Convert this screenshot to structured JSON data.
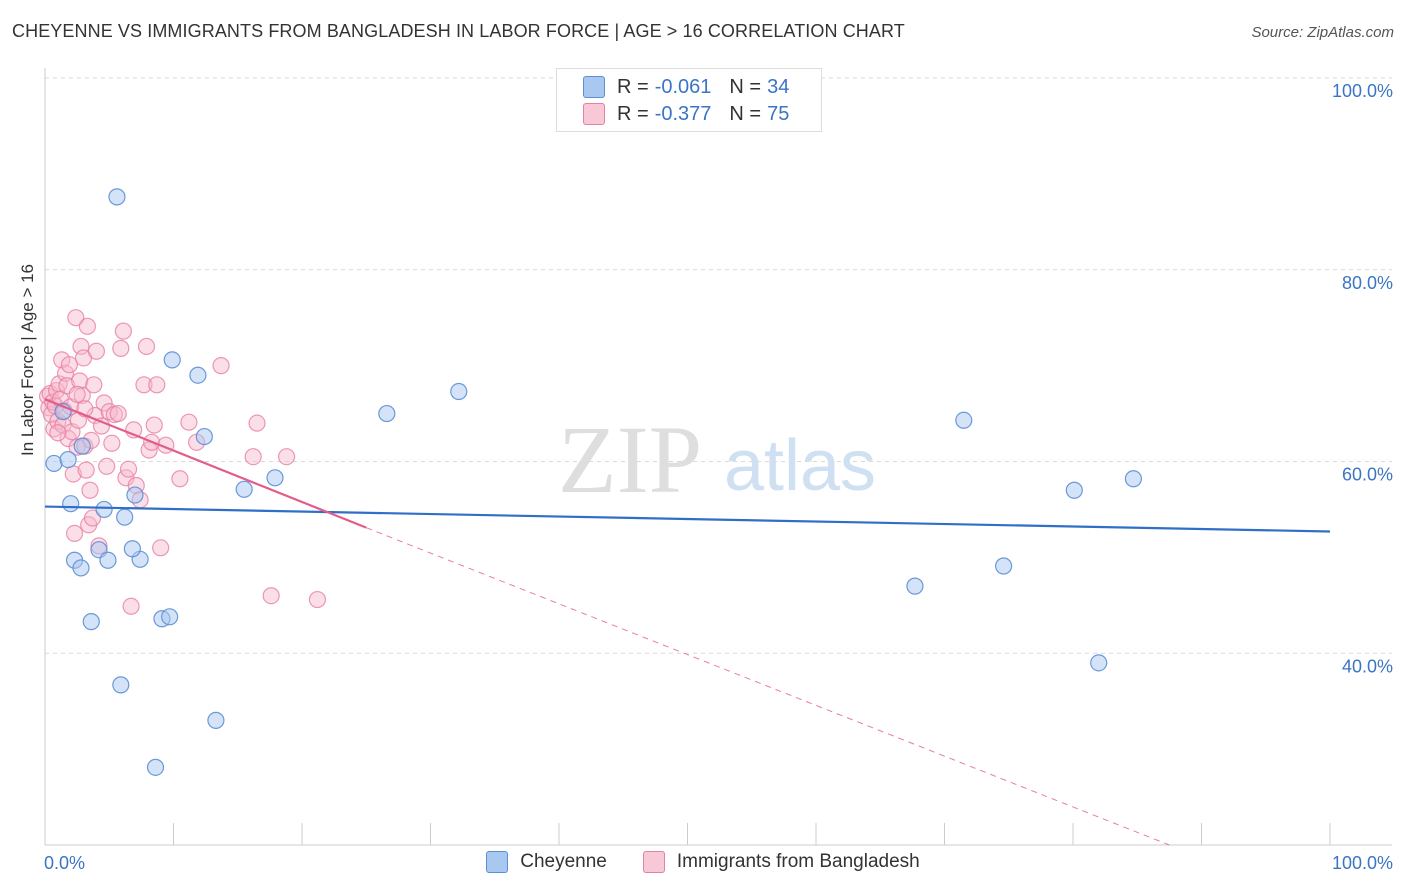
{
  "header": {
    "title": "CHEYENNE VS IMMIGRANTS FROM BANGLADESH IN LABOR FORCE | AGE > 16 CORRELATION CHART",
    "source": "Source: ZipAtlas.com"
  },
  "legend": {
    "series1": {
      "r_label": "R =",
      "r_value": "-0.061",
      "n_label": "N =",
      "n_value": "34"
    },
    "series2": {
      "r_label": "R =",
      "r_value": "-0.377",
      "n_label": "N =",
      "n_value": "75"
    }
  },
  "bottom_legend": {
    "series1": "Cheyenne",
    "series2": "Immigrants from Bangladesh"
  },
  "watermark": {
    "zip": "ZIP",
    "atlas": "atlas"
  },
  "colors": {
    "blue_fill": "#a9c8f0",
    "blue_stroke": "#5b8fd6",
    "blue_line": "#2f6fc8",
    "pink_fill": "#f7b8cb",
    "pink_stroke": "#e87fa0",
    "pink_line": "#e35d8a",
    "axis_text": "#3a75c4",
    "grid": "#d9d9d9"
  },
  "chart_data": {
    "type": "scatter",
    "title": "CHEYENNE VS IMMIGRANTS FROM BANGLADESH IN LABOR FORCE | AGE > 16 CORRELATION CHART",
    "xlabel": "",
    "ylabel": "In Labor Force | Age > 16",
    "xlim": [
      0,
      100
    ],
    "ylim": [
      20,
      100
    ],
    "x_tick_labels": [
      "0.0%",
      "100.0%"
    ],
    "y_ticks": [
      40,
      60,
      80,
      100
    ],
    "y_tick_labels": [
      "40.0%",
      "60.0%",
      "80.0%",
      "100.0%"
    ],
    "grid": true,
    "series": [
      {
        "name": "Cheyenne",
        "color": "blue",
        "points": [
          [
            5.6,
            87.6
          ],
          [
            0.7,
            59.8
          ],
          [
            1.8,
            60.2
          ],
          [
            2.0,
            55.6
          ],
          [
            2.3,
            49.7
          ],
          [
            2.8,
            48.9
          ],
          [
            3.6,
            43.3
          ],
          [
            4.2,
            50.8
          ],
          [
            4.6,
            55.0
          ],
          [
            4.9,
            49.7
          ],
          [
            5.9,
            36.7
          ],
          [
            6.2,
            54.2
          ],
          [
            7.0,
            56.5
          ],
          [
            7.4,
            49.8
          ],
          [
            8.6,
            28.1
          ],
          [
            9.1,
            43.6
          ],
          [
            9.7,
            43.8
          ],
          [
            9.9,
            70.6
          ],
          [
            11.9,
            69.0
          ],
          [
            12.4,
            62.6
          ],
          [
            13.3,
            33.0
          ],
          [
            15.5,
            57.1
          ],
          [
            17.9,
            58.3
          ],
          [
            26.6,
            65.0
          ],
          [
            32.2,
            67.3
          ],
          [
            67.7,
            47.0
          ],
          [
            71.5,
            64.3
          ],
          [
            74.6,
            49.1
          ],
          [
            80.1,
            57.0
          ],
          [
            82.0,
            39.0
          ],
          [
            84.7,
            58.2
          ],
          [
            2.9,
            61.6
          ],
          [
            1.4,
            65.2
          ],
          [
            6.8,
            50.9
          ]
        ],
        "trend": {
          "x1": 0,
          "y1": 55.3,
          "x2": 100,
          "y2": 52.7
        }
      },
      {
        "name": "Immigrants from Bangladesh",
        "color": "pink",
        "points": [
          [
            0.2,
            66.8
          ],
          [
            0.3,
            65.6
          ],
          [
            0.4,
            67.1
          ],
          [
            0.5,
            64.9
          ],
          [
            0.6,
            66.2
          ],
          [
            0.7,
            63.4
          ],
          [
            0.8,
            65.8
          ],
          [
            0.9,
            67.4
          ],
          [
            1.0,
            64.2
          ],
          [
            1.1,
            68.1
          ],
          [
            1.2,
            66.5
          ],
          [
            1.3,
            70.6
          ],
          [
            1.4,
            63.8
          ],
          [
            1.5,
            65.3
          ],
          [
            1.6,
            69.2
          ],
          [
            1.7,
            67.9
          ],
          [
            1.8,
            62.4
          ],
          [
            1.9,
            70.1
          ],
          [
            2.0,
            65.7
          ],
          [
            2.1,
            63.1
          ],
          [
            2.2,
            58.7
          ],
          [
            2.3,
            52.5
          ],
          [
            2.4,
            75.0
          ],
          [
            2.5,
            61.5
          ],
          [
            2.6,
            64.3
          ],
          [
            2.7,
            68.4
          ],
          [
            2.8,
            72.0
          ],
          [
            2.9,
            66.9
          ],
          [
            3.0,
            70.8
          ],
          [
            3.1,
            61.6
          ],
          [
            3.2,
            59.1
          ],
          [
            3.3,
            74.1
          ],
          [
            3.4,
            53.4
          ],
          [
            3.5,
            57.0
          ],
          [
            3.6,
            62.2
          ],
          [
            3.7,
            54.1
          ],
          [
            3.8,
            68.0
          ],
          [
            3.9,
            64.8
          ],
          [
            4.0,
            71.5
          ],
          [
            4.2,
            51.2
          ],
          [
            4.4,
            63.7
          ],
          [
            4.6,
            66.1
          ],
          [
            4.8,
            59.5
          ],
          [
            5.0,
            65.2
          ],
          [
            5.2,
            61.9
          ],
          [
            5.4,
            64.9
          ],
          [
            5.7,
            65.0
          ],
          [
            5.9,
            71.8
          ],
          [
            6.1,
            73.6
          ],
          [
            6.3,
            58.3
          ],
          [
            6.5,
            59.2
          ],
          [
            6.7,
            44.9
          ],
          [
            6.9,
            63.3
          ],
          [
            7.1,
            57.5
          ],
          [
            7.4,
            56.0
          ],
          [
            7.7,
            68.0
          ],
          [
            7.9,
            72.0
          ],
          [
            8.1,
            61.2
          ],
          [
            8.3,
            62.0
          ],
          [
            8.5,
            63.8
          ],
          [
            8.7,
            68.0
          ],
          [
            9.0,
            51.0
          ],
          [
            9.4,
            61.7
          ],
          [
            10.5,
            58.2
          ],
          [
            11.2,
            64.1
          ],
          [
            11.8,
            62.0
          ],
          [
            13.7,
            70.0
          ],
          [
            16.2,
            60.5
          ],
          [
            16.5,
            64.0
          ],
          [
            17.6,
            46.0
          ],
          [
            18.8,
            60.5
          ],
          [
            21.2,
            45.6
          ],
          [
            2.5,
            67.0
          ],
          [
            1.0,
            63.0
          ],
          [
            3.1,
            65.5
          ]
        ],
        "trend_solid": {
          "x1": 0,
          "y1": 66.5,
          "x2": 25,
          "y2": 53.1
        },
        "trend_dashed": {
          "x1": 25,
          "y1": 53.1,
          "x2": 87.5,
          "y2": 20
        }
      }
    ]
  }
}
